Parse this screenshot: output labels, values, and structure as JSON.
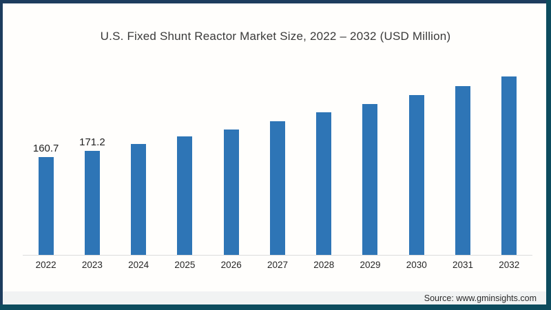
{
  "title": "U.S. Fixed Shunt Reactor Market Size, 2022 – 2032 (USD Million)",
  "source": "Source: www.gminsights.com",
  "frame": {
    "border_top_color": "#1d3d5e",
    "border_left_color": "#1d3d5e",
    "border_right_color": "#0d4c5e",
    "border_bottom_color": "#0d4c5e",
    "background_color": "#fffefc"
  },
  "chart_data": {
    "type": "bar",
    "title": "U.S. Fixed Shunt Reactor Market Size, 2022 – 2032 (USD Million)",
    "xlabel": "",
    "ylabel": "",
    "categories": [
      "2022",
      "2023",
      "2024",
      "2025",
      "2026",
      "2027",
      "2028",
      "2029",
      "2030",
      "2031",
      "2032"
    ],
    "values": [
      160.7,
      171.2,
      182.9,
      194.9,
      206.8,
      220.3,
      234.5,
      248.4,
      262.9,
      278.2,
      294.2
    ],
    "data_labels": [
      "160.7",
      "171.2",
      "",
      "",
      "",
      "",
      "",
      "",
      "",
      "",
      ""
    ],
    "ylim": [
      0,
      313
    ],
    "grid": false,
    "legend": false,
    "y_axis_visible": false,
    "bar_color": "#2e75b6",
    "axis_line_color": "#dcdcdc"
  }
}
